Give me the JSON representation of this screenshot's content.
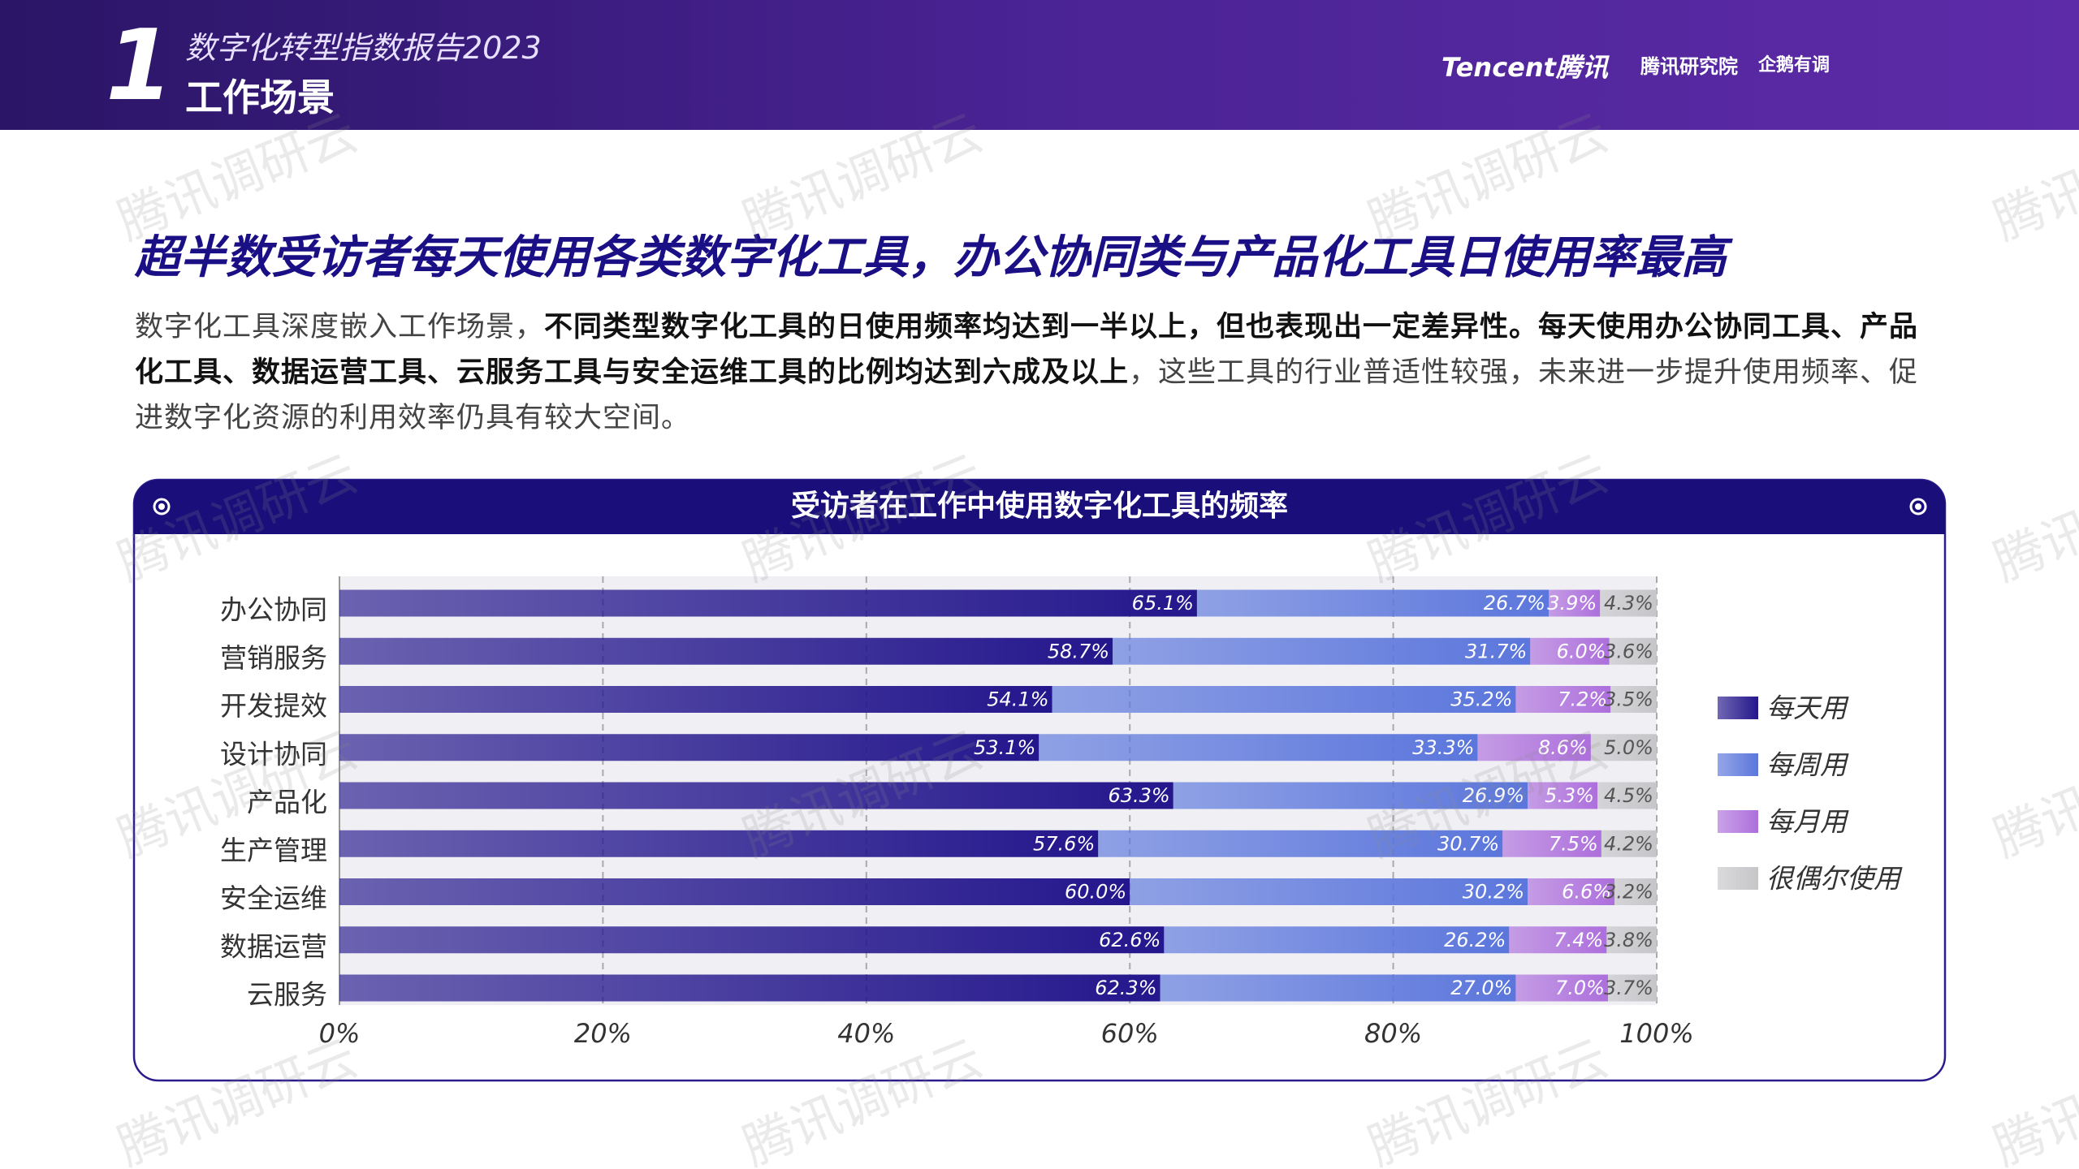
{
  "header": {
    "number": "1",
    "report": "数字化转型指数报告2023",
    "section": "工作场景",
    "logos": [
      "Tencent腾讯",
      "腾讯研究院",
      "企鹅有调"
    ]
  },
  "headline": "超半数受访者每天使用各类数字化工具，办公协同类与产品化工具日使用率最高",
  "paragraph": [
    {
      "text": "数字化工具深度嵌入工作场景，",
      "bold": false
    },
    {
      "text": "不同类型数字化工具的日使用频率均达到一半以上，但也表现出一定差异性。每天使用办公协同工具、产品化工具、数据运营工具、云服务工具与安全运维工具的比例均达到六成及以上",
      "bold": true
    },
    {
      "text": "，这些工具的行业普适性较强，未来进一步提升使用频率、促进数字化资源的利用效率仍具有较大空间。",
      "bold": false
    }
  ],
  "watermark": "腾讯调研云",
  "chart_data": {
    "type": "stacked-bar-horizontal",
    "title": "受访者在工作中使用数字化工具的频率",
    "categories": [
      "办公协同",
      "营销服务",
      "开发提效",
      "设计协同",
      "产品化",
      "生产管理",
      "安全运维",
      "数据运营",
      "云服务"
    ],
    "series": [
      {
        "name": "每天用",
        "color": "#24168c",
        "values": [
          65.1,
          58.7,
          54.1,
          53.1,
          63.3,
          57.6,
          60.0,
          62.6,
          62.3
        ],
        "value_labels": [
          "65.1%",
          "58.7%",
          "54.1%",
          "53.1%",
          "63.3%",
          "57.6%",
          "60.0%",
          "62.6%",
          "62.3%"
        ]
      },
      {
        "name": "每周用",
        "color": "#5b76dc",
        "values": [
          26.7,
          31.7,
          35.2,
          33.3,
          26.9,
          30.7,
          30.2,
          26.2,
          27.0
        ],
        "value_labels": [
          "26.7%",
          "31.7%",
          "35.2%",
          "33.3%",
          "26.9%",
          "30.7%",
          "30.2%",
          "26.2%",
          "27.0%"
        ]
      },
      {
        "name": "每月用",
        "color": "#ad6fdc",
        "values": [
          3.9,
          6.0,
          7.2,
          8.6,
          5.3,
          7.5,
          6.6,
          7.4,
          7.0
        ],
        "value_labels": [
          "3.9%",
          "6.0%",
          "7.2%",
          "8.6%",
          "5.3%",
          "7.5%",
          "6.6%",
          "7.4%",
          "7.0%"
        ]
      },
      {
        "name": "很偶尔使用",
        "color": "#c6c6c9",
        "values": [
          4.3,
          3.6,
          3.5,
          5.0,
          4.5,
          4.2,
          3.2,
          3.8,
          3.7
        ],
        "value_labels": [
          "4.3%",
          "3.6%",
          "3.5%",
          "5.0%",
          "4.5%",
          "4.2%",
          "3.2%",
          "3.8%",
          "3.7%"
        ]
      }
    ],
    "xlim": [
      0,
      100
    ],
    "xticks": [
      {
        "value": 0,
        "label": "0%"
      },
      {
        "value": 20,
        "label": "20%"
      },
      {
        "value": 40,
        "label": "40%"
      },
      {
        "value": 60,
        "label": "60%"
      },
      {
        "value": 80,
        "label": "80%"
      },
      {
        "value": 100,
        "label": "100%"
      }
    ],
    "grid": true,
    "legend": "right"
  }
}
